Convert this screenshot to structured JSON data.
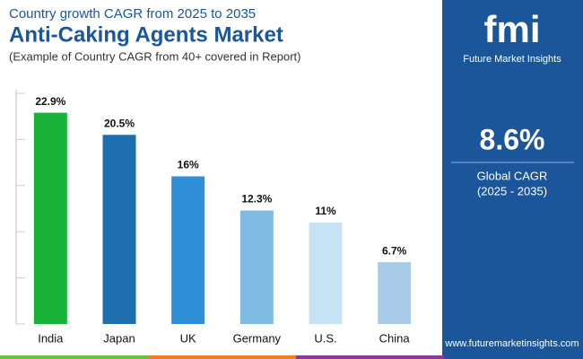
{
  "chart_data": {
    "type": "bar",
    "supertitle": "Country growth CAGR from 2025 to 2035",
    "title": "Anti-Caking Agents Market",
    "subtitle": "(Example of Country CAGR from 40+ covered in Report)",
    "categories": [
      "India",
      "Japan",
      "UK",
      "Germany",
      "U.S.",
      "China"
    ],
    "values": [
      22.9,
      20.5,
      16,
      12.3,
      11,
      6.7
    ],
    "value_labels": [
      "22.9%",
      "20.5%",
      "16%",
      "12.3%",
      "11%",
      "6.7%"
    ],
    "colors": [
      "#19b33a",
      "#1d6fae",
      "#2e8fd6",
      "#80bbe3",
      "#c6e3f6",
      "#a9cde8"
    ],
    "ylim": [
      0,
      25
    ],
    "yticks": [
      0,
      5,
      10,
      15,
      20,
      25
    ]
  },
  "sidebar": {
    "value": "8.6%",
    "label": "Global CAGR",
    "period": "(2025 - 2035)"
  },
  "logo": {
    "mark": "fmi",
    "name": "Future Market Insights"
  },
  "footer": {
    "url": "www.futuremarketinsights.com"
  }
}
